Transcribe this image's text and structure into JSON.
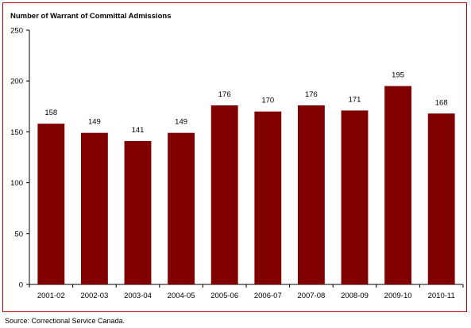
{
  "chart_data": {
    "type": "bar",
    "title": "Number of Warrant of Committal Admissions",
    "categories": [
      "2001-02",
      "2002-03",
      "2003-04",
      "2004-05",
      "2005-06",
      "2006-07",
      "2007-08",
      "2008-09",
      "2009-10",
      "2010-11"
    ],
    "values": [
      158,
      149,
      141,
      149,
      176,
      170,
      176,
      171,
      195,
      168
    ],
    "xlabel": "",
    "ylabel": "",
    "ylim": [
      0,
      250
    ],
    "yticks": [
      0,
      50,
      100,
      150,
      200,
      250
    ],
    "grid": false,
    "bar_color": "#800000",
    "data_labels": true
  },
  "source": "Source:  Correctional Service Canada."
}
